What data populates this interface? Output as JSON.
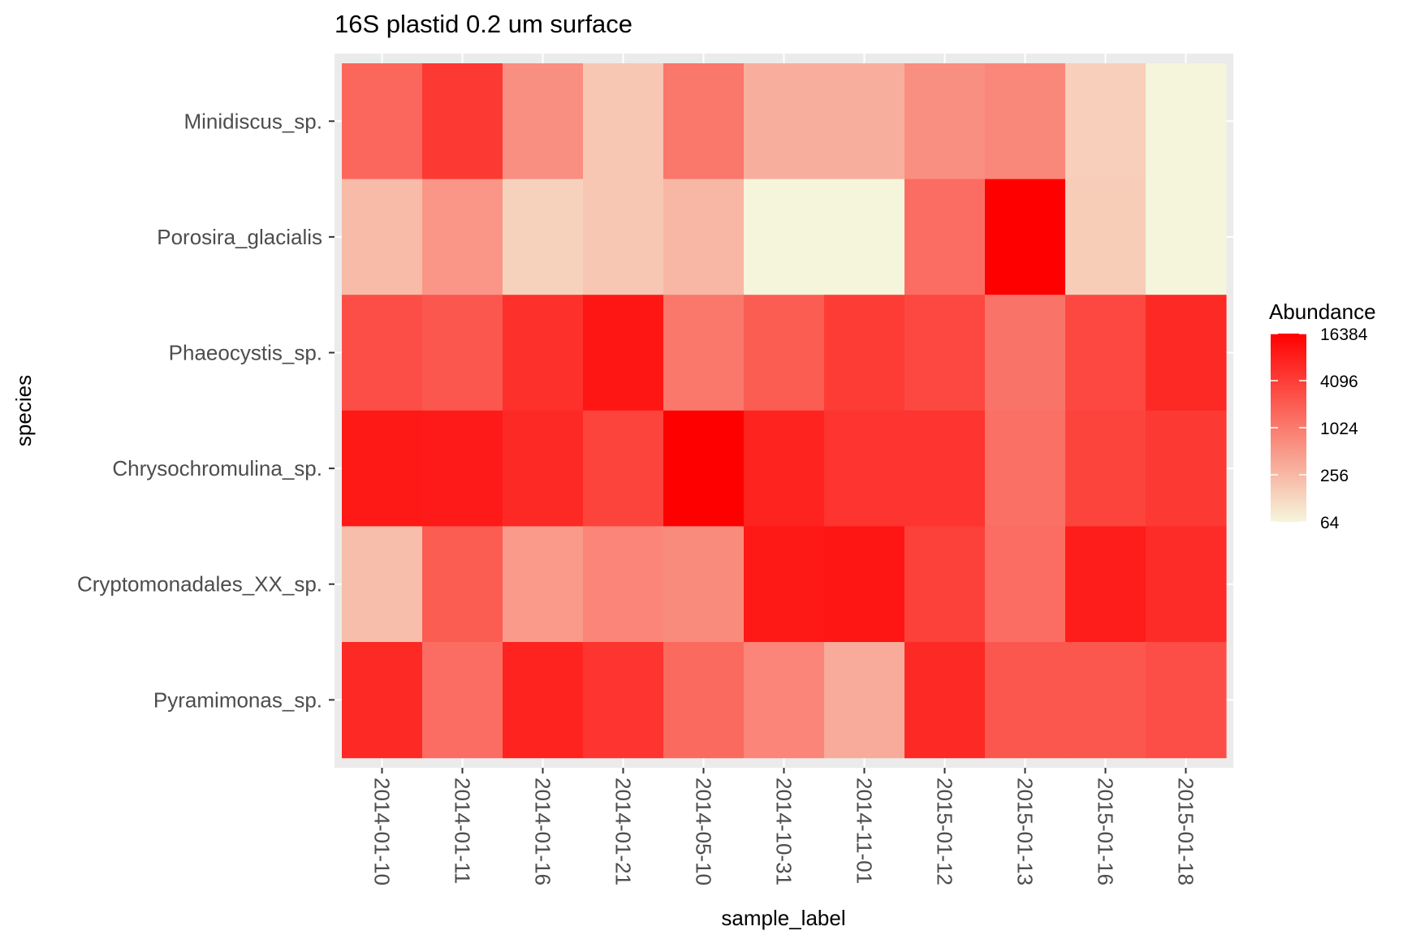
{
  "chart_data": {
    "type": "heatmap",
    "title": "16S plastid 0.2 um surface",
    "xlabel": "sample_label",
    "ylabel": "species",
    "x": [
      "2014-01-10",
      "2014-01-11",
      "2014-01-16",
      "2014-01-21",
      "2014-05-10",
      "2014-10-31",
      "2014-11-01",
      "2015-01-12",
      "2015-01-13",
      "2015-01-16",
      "2015-01-18"
    ],
    "y": [
      "Minidiscus_sp.",
      "Porosira_glacialis",
      "Phaeocystis_sp.",
      "Chrysochromulina_sp.",
      "Cryptomonadales_XX_sp.",
      "Pyramimonas_sp."
    ],
    "values": [
      [
        1600,
        4500,
        650,
        180,
        1100,
        320,
        320,
        650,
        750,
        150,
        60
      ],
      [
        240,
        550,
        140,
        180,
        260,
        60,
        60,
        1400,
        18000,
        160,
        60
      ],
      [
        2800,
        2300,
        5500,
        10000,
        1100,
        2000,
        4200,
        3200,
        1200,
        3200,
        6500
      ],
      [
        9500,
        9000,
        6500,
        3500,
        16384,
        7500,
        5000,
        5000,
        1300,
        3500,
        4500
      ],
      [
        220,
        2000,
        500,
        800,
        700,
        9500,
        10000,
        3800,
        1400,
        8500,
        6000
      ],
      [
        6500,
        1400,
        7500,
        5000,
        1500,
        800,
        340,
        6500,
        2300,
        2300,
        2800
      ]
    ],
    "colorscale": {
      "type": "log2",
      "low": "#f5f5dc",
      "high": "#ff0000",
      "min": 64,
      "max": 16384
    },
    "legend": {
      "title": "Abundance",
      "ticks": [
        16384,
        4096,
        1024,
        256,
        64
      ],
      "position": "right"
    },
    "panel_background": "#ebebeb",
    "grid": true
  }
}
